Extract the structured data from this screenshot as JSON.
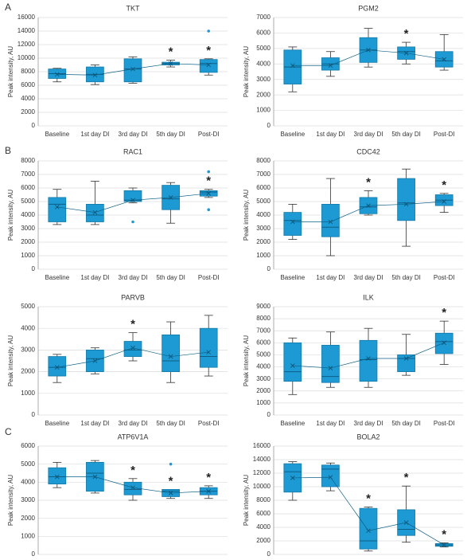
{
  "panel_labels": [
    "A",
    "B",
    "C"
  ],
  "chart_data": [
    {
      "type": "box",
      "title": "TKT",
      "ylabel": "Peak intensity, AU",
      "color": "#1d9ad3",
      "categories": [
        "Baseline",
        "1st day DI",
        "3rd day DI",
        "5th day DI",
        "Post-DI"
      ],
      "ylim": [
        0,
        16000
      ],
      "yticks": [
        0,
        2000,
        4000,
        6000,
        8000,
        10000,
        12000,
        14000,
        16000
      ],
      "boxes": [
        {
          "min": 6500,
          "q1": 7000,
          "median": 7700,
          "q3": 8400,
          "max": 8500,
          "mean": 7600
        },
        {
          "min": 6100,
          "q1": 6500,
          "median": 7600,
          "q3": 8700,
          "max": 9000,
          "mean": 7500
        },
        {
          "min": 6300,
          "q1": 6500,
          "median": 8400,
          "q3": 9900,
          "max": 10200,
          "mean": 8400
        },
        {
          "min": 8700,
          "q1": 9000,
          "median": 9200,
          "q3": 9400,
          "max": 9700,
          "mean": 9200
        },
        {
          "min": 7500,
          "q1": 7900,
          "median": 9200,
          "q3": 9800,
          "max": 9900,
          "mean": 9000,
          "outliers": [
            14000
          ]
        }
      ],
      "significance": [
        null,
        null,
        null,
        "*",
        "*"
      ]
    },
    {
      "type": "box",
      "title": "PGM2",
      "ylabel": "Peak intensity, AU",
      "color": "#1d9ad3",
      "categories": [
        "Baseline",
        "1st day DI",
        "3rd day DI",
        "5th day DI",
        "Post-DI"
      ],
      "ylim": [
        0,
        7000
      ],
      "yticks": [
        0,
        1000,
        2000,
        3000,
        4000,
        5000,
        6000,
        7000
      ],
      "boxes": [
        {
          "min": 2200,
          "q1": 2700,
          "median": 3800,
          "q3": 4900,
          "max": 5100,
          "mean": 3900
        },
        {
          "min": 3200,
          "q1": 3600,
          "median": 4000,
          "q3": 4400,
          "max": 4800,
          "mean": 3900
        },
        {
          "min": 3800,
          "q1": 4100,
          "median": 4900,
          "q3": 5700,
          "max": 6300,
          "mean": 4900
        },
        {
          "min": 4000,
          "q1": 4300,
          "median": 4800,
          "q3": 5100,
          "max": 5400,
          "mean": 4700
        },
        {
          "min": 3600,
          "q1": 3800,
          "median": 4200,
          "q3": 4800,
          "max": 5900,
          "mean": 4300
        }
      ],
      "significance": [
        null,
        null,
        null,
        "*",
        null
      ]
    },
    {
      "type": "box",
      "title": "RAC1",
      "ylabel": "Peak intensity, AU",
      "color": "#1d9ad3",
      "categories": [
        "Baseline",
        "1st day DI",
        "3rd day DI",
        "5th day DI",
        "Post-DI"
      ],
      "ylim": [
        0,
        8000
      ],
      "yticks": [
        0,
        1000,
        2000,
        3000,
        4000,
        5000,
        6000,
        7000,
        8000
      ],
      "boxes": [
        {
          "min": 3300,
          "q1": 3500,
          "median": 4800,
          "q3": 5300,
          "max": 5900,
          "mean": 4600
        },
        {
          "min": 3300,
          "q1": 3500,
          "median": 4000,
          "q3": 4800,
          "max": 6500,
          "mean": 4200
        },
        {
          "min": 4900,
          "q1": 5000,
          "median": 5100,
          "q3": 5800,
          "max": 6000,
          "mean": 5100,
          "outliers": [
            3500
          ]
        },
        {
          "min": 3400,
          "q1": 4400,
          "median": 5200,
          "q3": 6200,
          "max": 6400,
          "mean": 5300
        },
        {
          "min": 5300,
          "q1": 5400,
          "median": 5700,
          "q3": 5800,
          "max": 5900,
          "mean": 5600,
          "outliers": [
            4400,
            7200
          ]
        }
      ],
      "significance": [
        null,
        null,
        null,
        null,
        "*"
      ]
    },
    {
      "type": "box",
      "title": "CDC42",
      "ylabel": "Peak intensity, AU",
      "color": "#1d9ad3",
      "categories": [
        "Baseline",
        "1st day DI",
        "3rd day DI",
        "5th day DI",
        "Post-DI"
      ],
      "ylim": [
        0,
        8000
      ],
      "yticks": [
        0,
        1000,
        2000,
        3000,
        4000,
        5000,
        6000,
        7000,
        8000
      ],
      "boxes": [
        {
          "min": 2200,
          "q1": 2500,
          "median": 3600,
          "q3": 4200,
          "max": 4800,
          "mean": 3500
        },
        {
          "min": 1000,
          "q1": 2400,
          "median": 3100,
          "q3": 4800,
          "max": 6700,
          "mean": 3500
        },
        {
          "min": 4000,
          "q1": 4100,
          "median": 4600,
          "q3": 5300,
          "max": 5800,
          "mean": 4700
        },
        {
          "min": 1700,
          "q1": 3600,
          "median": 4900,
          "q3": 6700,
          "max": 7400,
          "mean": 4800
        },
        {
          "min": 4200,
          "q1": 4700,
          "median": 5100,
          "q3": 5500,
          "max": 5600,
          "mean": 5000
        }
      ],
      "significance": [
        null,
        null,
        "*",
        null,
        "*"
      ]
    },
    {
      "type": "box",
      "title": "PARVB",
      "ylabel": "Peak intensity, AU",
      "color": "#1d9ad3",
      "categories": [
        "Baseline",
        "1st day DI",
        "3rd day DI",
        "5th day DI",
        "Post-DI"
      ],
      "ylim": [
        0,
        5000
      ],
      "yticks": [
        0,
        1000,
        2000,
        3000,
        4000,
        5000
      ],
      "boxes": [
        {
          "min": 1500,
          "q1": 1800,
          "median": 2200,
          "q3": 2700,
          "max": 2800,
          "mean": 2200
        },
        {
          "min": 1900,
          "q1": 2000,
          "median": 2600,
          "q3": 3000,
          "max": 3100,
          "mean": 2500
        },
        {
          "min": 2500,
          "q1": 2700,
          "median": 3000,
          "q3": 3400,
          "max": 3800,
          "mean": 3100
        },
        {
          "min": 1500,
          "q1": 2000,
          "median": 2500,
          "q3": 3700,
          "max": 4300,
          "mean": 2700
        },
        {
          "min": 1800,
          "q1": 2200,
          "median": 2700,
          "q3": 4000,
          "max": 4600,
          "mean": 2900
        }
      ],
      "significance": [
        null,
        null,
        "*",
        null,
        null
      ]
    },
    {
      "type": "box",
      "title": "ILK",
      "ylabel": "Peak intensity, AU",
      "color": "#1d9ad3",
      "categories": [
        "Baseline",
        "1st day DI",
        "3rd day DI",
        "5th day DI",
        "Post-DI"
      ],
      "ylim": [
        0,
        9000
      ],
      "yticks": [
        0,
        1000,
        2000,
        3000,
        4000,
        5000,
        6000,
        7000,
        8000,
        9000
      ],
      "boxes": [
        {
          "min": 1700,
          "q1": 2800,
          "median": 3600,
          "q3": 6000,
          "max": 6400,
          "mean": 4100
        },
        {
          "min": 2300,
          "q1": 2700,
          "median": 3200,
          "q3": 5800,
          "max": 6900,
          "mean": 3900
        },
        {
          "min": 2300,
          "q1": 2800,
          "median": 4600,
          "q3": 6200,
          "max": 7200,
          "mean": 4700
        },
        {
          "min": 3300,
          "q1": 3600,
          "median": 4700,
          "q3": 5000,
          "max": 6700,
          "mean": 4700
        },
        {
          "min": 4200,
          "q1": 5100,
          "median": 6100,
          "q3": 6800,
          "max": 7800,
          "mean": 6000
        }
      ],
      "significance": [
        null,
        null,
        null,
        null,
        "*"
      ]
    },
    {
      "type": "box",
      "title": "ATP6V1A",
      "ylabel": "Peak intensity, AU",
      "color": "#1d9ad3",
      "categories": [
        "Baseline",
        "1st day DI",
        "3rd day DI",
        "5th day DI",
        "Post-DI"
      ],
      "ylim": [
        0,
        6000
      ],
      "yticks": [
        0,
        1000,
        2000,
        3000,
        4000,
        5000,
        6000
      ],
      "boxes": [
        {
          "min": 3700,
          "q1": 3900,
          "median": 4300,
          "q3": 4800,
          "max": 5100,
          "mean": 4300
        },
        {
          "min": 3400,
          "q1": 3500,
          "median": 4500,
          "q3": 5100,
          "max": 5200,
          "mean": 4300
        },
        {
          "min": 3000,
          "q1": 3300,
          "median": 3600,
          "q3": 4000,
          "max": 4200,
          "mean": 3700
        },
        {
          "min": 3100,
          "q1": 3200,
          "median": 3500,
          "q3": 3600,
          "max": 3600,
          "mean": 3400,
          "outliers": [
            5000
          ]
        },
        {
          "min": 3100,
          "q1": 3300,
          "median": 3500,
          "q3": 3700,
          "max": 3800,
          "mean": 3500
        }
      ],
      "significance": [
        null,
        null,
        "*",
        "*",
        "*"
      ]
    },
    {
      "type": "box",
      "title": "BOLA2",
      "ylabel": "Peak intensity, AU",
      "color": "#1d9ad3",
      "categories": [
        "Baseline",
        "1st day DI",
        "3rd day DI",
        "5th day DI",
        "Post-DI"
      ],
      "ylim": [
        0,
        16000
      ],
      "yticks": [
        0,
        2000,
        4000,
        6000,
        8000,
        10000,
        12000,
        14000,
        16000
      ],
      "boxes": [
        {
          "min": 8000,
          "q1": 9200,
          "median": 12200,
          "q3": 13400,
          "max": 13700,
          "mean": 11300
        },
        {
          "min": 9400,
          "q1": 10000,
          "median": 12600,
          "q3": 13200,
          "max": 13500,
          "mean": 11400
        },
        {
          "min": 500,
          "q1": 800,
          "median": 2000,
          "q3": 6800,
          "max": 7000,
          "mean": 3500
        },
        {
          "min": 1800,
          "q1": 2800,
          "median": 3700,
          "q3": 6600,
          "max": 10100,
          "mean": 4700
        },
        {
          "min": 1100,
          "q1": 1200,
          "median": 1400,
          "q3": 1600,
          "max": 1700,
          "mean": 1400
        }
      ],
      "significance": [
        null,
        null,
        "*",
        "*",
        "*"
      ]
    }
  ]
}
